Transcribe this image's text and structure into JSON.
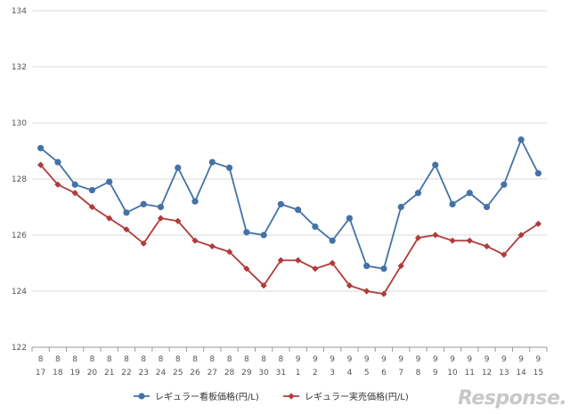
{
  "chart_data": {
    "type": "line",
    "title": "",
    "xlabel": "",
    "ylabel": "",
    "ylim": [
      122,
      134
    ],
    "yticks": [
      122,
      124,
      126,
      128,
      130,
      132,
      134
    ],
    "grid": "horizontal",
    "legend_placement": "bottom",
    "categories": [
      {
        "month": "8",
        "day": "17"
      },
      {
        "month": "8",
        "day": "18"
      },
      {
        "month": "8",
        "day": "19"
      },
      {
        "month": "8",
        "day": "20"
      },
      {
        "month": "8",
        "day": "21"
      },
      {
        "month": "8",
        "day": "22"
      },
      {
        "month": "8",
        "day": "23"
      },
      {
        "month": "8",
        "day": "24"
      },
      {
        "month": "8",
        "day": "25"
      },
      {
        "month": "8",
        "day": "26"
      },
      {
        "month": "8",
        "day": "27"
      },
      {
        "month": "8",
        "day": "28"
      },
      {
        "month": "8",
        "day": "29"
      },
      {
        "month": "8",
        "day": "30"
      },
      {
        "month": "8",
        "day": "31"
      },
      {
        "month": "9",
        "day": "1"
      },
      {
        "month": "9",
        "day": "2"
      },
      {
        "month": "9",
        "day": "3"
      },
      {
        "month": "9",
        "day": "4"
      },
      {
        "month": "9",
        "day": "5"
      },
      {
        "month": "9",
        "day": "6"
      },
      {
        "month": "9",
        "day": "7"
      },
      {
        "month": "9",
        "day": "8"
      },
      {
        "month": "9",
        "day": "9"
      },
      {
        "month": "9",
        "day": "10"
      },
      {
        "month": "9",
        "day": "11"
      },
      {
        "month": "9",
        "day": "12"
      },
      {
        "month": "9",
        "day": "13"
      },
      {
        "month": "9",
        "day": "14"
      },
      {
        "month": "9",
        "day": "15"
      }
    ],
    "series": [
      {
        "name": "レギュラー看板価格(円/L)",
        "color": "#4472a8",
        "marker": "circle",
        "values": [
          129.1,
          128.6,
          127.8,
          127.6,
          127.9,
          126.8,
          127.1,
          127.0,
          128.4,
          127.2,
          128.6,
          128.4,
          126.1,
          126.0,
          127.1,
          126.9,
          126.3,
          125.8,
          126.6,
          124.9,
          124.8,
          127.0,
          127.5,
          128.5,
          127.1,
          127.5,
          127.0,
          127.8,
          129.4,
          128.2
        ]
      },
      {
        "name": "レギュラー実売価格(円/L)",
        "color": "#b23a3a",
        "marker": "diamond",
        "values": [
          128.5,
          127.8,
          127.5,
          127.0,
          126.6,
          126.2,
          125.7,
          126.6,
          126.5,
          125.8,
          125.6,
          125.4,
          124.8,
          124.2,
          125.1,
          125.1,
          124.8,
          125.0,
          124.2,
          124.0,
          123.9,
          124.9,
          125.9,
          126.0,
          125.8,
          125.8,
          125.6,
          125.3,
          126.0,
          126.4
        ]
      }
    ]
  },
  "watermark": {
    "text": "Response.",
    "color": "#c8c8c8"
  }
}
